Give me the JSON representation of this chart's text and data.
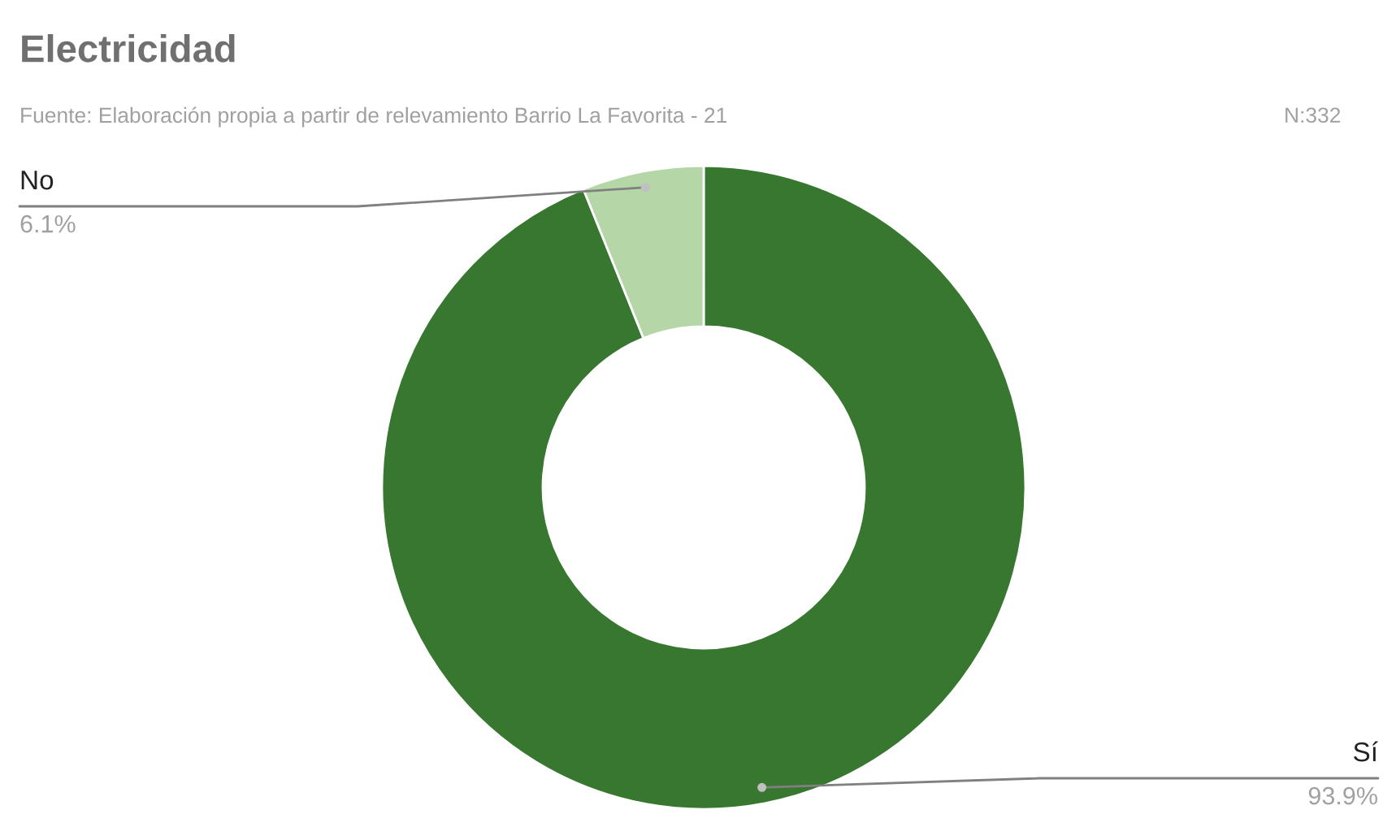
{
  "chart_data": {
    "type": "donut",
    "title": "Electricidad",
    "annotations": [
      "Fuente: Elaboración propia a partir de relevamiento Barrio La Favorita - 21",
      "N:332"
    ],
    "categories": [
      "Sí",
      "No"
    ],
    "values": [
      93.9,
      6.1
    ],
    "colors": [
      "#37772f",
      "#b5d6a7"
    ],
    "value_labels": [
      "93.9%",
      "6.1%"
    ],
    "legend": false
  }
}
